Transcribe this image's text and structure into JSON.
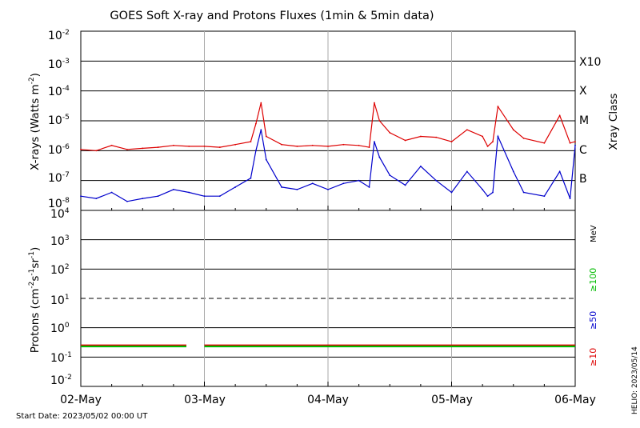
{
  "chart_data": [
    {
      "type": "line",
      "title": "GOES Soft X-ray and Protons Fluxes   (1min & 5min data)",
      "ylabel": "X-rays (Watts m",
      "ylabel_exp": "-2",
      "ylabel_close": ")",
      "yscale": "log",
      "ylim": [
        1e-08,
        0.01
      ],
      "ytick_exponents": [
        "-2",
        "-3",
        "-4",
        "-5",
        "-6",
        "-7",
        "-8"
      ],
      "xlim": [
        "2023-05-02 00:00",
        "2023-05-06 00:00"
      ],
      "xray_class_label": "Xray Class",
      "xray_classes": [
        {
          "label": "X10",
          "flux": 0.001
        },
        {
          "label": "X",
          "flux": 0.0001
        },
        {
          "label": "M",
          "flux": 1e-05
        },
        {
          "label": "C",
          "flux": 1e-06
        },
        {
          "label": "B",
          "flux": 1e-07
        }
      ],
      "colors": {
        "long": "#dd0000",
        "short": "#0000cc",
        "grid": "#000000",
        "day": "#aaaaaa"
      },
      "series": [
        {
          "x": [
            "05/02 00:00",
            "05/02 03:00",
            "05/02 06:00",
            "05/02 09:00",
            "05/02 12:00",
            "05/02 15:00",
            "05/02 18:00",
            "05/02 21:00",
            "05/03 00:00",
            "05/03 03:00",
            "05/03 06:00",
            "05/03 09:00",
            "05/03 10:00",
            "05/03 11:00",
            "05/03 12:00",
            "05/03 15:00",
            "05/03 18:00",
            "05/03 21:00",
            "05/04 00:00",
            "05/04 03:00",
            "05/04 06:00",
            "05/04 08:00",
            "05/04 09:00",
            "05/04 10:00",
            "05/04 12:00",
            "05/04 15:00",
            "05/04 18:00",
            "05/04 21:00",
            "05/05 00:00",
            "05/05 03:00",
            "05/05 06:00",
            "05/05 07:00",
            "05/05 08:00",
            "05/05 09:00",
            "05/05 12:00",
            "05/05 14:00",
            "05/05 18:00",
            "05/05 21:00",
            "05/05 23:00",
            "05/06 00:00"
          ],
          "values": [
            1.1e-06,
            1e-06,
            1.5e-06,
            1.1e-06,
            1.2e-06,
            1.3e-06,
            1.5e-06,
            1.4e-06,
            1.4e-06,
            1.3e-06,
            1.6e-06,
            2e-06,
            8e-06,
            4e-05,
            3e-06,
            1.6e-06,
            1.4e-06,
            1.5e-06,
            1.4e-06,
            1.6e-06,
            1.5e-06,
            1.3e-06,
            4e-05,
            1e-05,
            4e-06,
            2.2e-06,
            3e-06,
            2.8e-06,
            2e-06,
            5e-06,
            3e-06,
            1.4e-06,
            2e-06,
            3e-05,
            5e-06,
            2.6e-06,
            1.8e-06,
            1.5e-05,
            1.8e-06,
            2e-06
          ]
        },
        {
          "x": [
            "05/02 00:00",
            "05/02 03:00",
            "05/02 06:00",
            "05/02 09:00",
            "05/02 12:00",
            "05/02 15:00",
            "05/02 18:00",
            "05/02 21:00",
            "05/03 00:00",
            "05/03 03:00",
            "05/03 06:00",
            "05/03 09:00",
            "05/03 10:00",
            "05/03 11:00",
            "05/03 12:00",
            "05/03 15:00",
            "05/03 18:00",
            "05/03 21:00",
            "05/04 00:00",
            "05/04 03:00",
            "05/04 06:00",
            "05/04 08:00",
            "05/04 09:00",
            "05/04 10:00",
            "05/04 12:00",
            "05/04 15:00",
            "05/04 18:00",
            "05/04 21:00",
            "05/05 00:00",
            "05/05 03:00",
            "05/05 06:00",
            "05/05 07:00",
            "05/05 08:00",
            "05/05 09:00",
            "05/05 12:00",
            "05/05 14:00",
            "05/05 18:00",
            "05/05 21:00",
            "05/05 23:00",
            "05/06 00:00"
          ],
          "values": [
            3e-08,
            2.5e-08,
            4e-08,
            2e-08,
            2.5e-08,
            3e-08,
            5e-08,
            4e-08,
            3e-08,
            3e-08,
            6e-08,
            1.2e-07,
            1e-06,
            5e-06,
            5e-07,
            6e-08,
            5e-08,
            8e-08,
            5e-08,
            8e-08,
            1e-07,
            6e-08,
            2e-06,
            6e-07,
            1.5e-07,
            7e-08,
            3e-07,
            1e-07,
            4e-08,
            2e-07,
            5e-08,
            3e-08,
            4e-08,
            3e-06,
            2e-07,
            4e-08,
            3e-08,
            2e-07,
            2.5e-08,
            1.5e-06
          ]
        }
      ]
    },
    {
      "type": "line",
      "ylabel": "Protons (cm",
      "ylabel_exp1": "-2",
      "ylabel_s": "s",
      "ylabel_exp2": "-1",
      "ylabel_sr": "sr",
      "ylabel_exp3": "-1",
      "ylabel_close": ")",
      "yscale": "log",
      "ylim": [
        0.01,
        10000.0
      ],
      "ytick_exponents": [
        "4",
        "3",
        "2",
        "1",
        "0",
        "-1",
        "-2"
      ],
      "units_label": "MeV",
      "channel_labels": [
        {
          "label": "≥100",
          "color": "#00bb00"
        },
        {
          "label": "≥50",
          "color": "#0000cc"
        },
        {
          "label": "≥10",
          "color": "#dd0000"
        }
      ],
      "threshold": 10,
      "series": [
        {
          "x_range": [
            "05/02 00:00",
            "05/02 20:30"
          ],
          "level": 0.25,
          "color": "#dd0000"
        },
        {
          "x_range": [
            "05/02 00:00",
            "05/02 20:30"
          ],
          "level": 0.23,
          "color": "#00bb00"
        },
        {
          "x_range": [
            "05/03 00:00",
            "05/06 00:00"
          ],
          "level": 0.25,
          "color": "#dd0000"
        },
        {
          "x_range": [
            "05/03 00:00",
            "05/06 00:00"
          ],
          "level": 0.23,
          "color": "#00bb00"
        }
      ]
    }
  ],
  "xaxis": {
    "tick_labels": [
      "02-May",
      "03-May",
      "04-May",
      "05-May",
      "06-May"
    ]
  },
  "footer": {
    "start_date": "Start Date: 2023/05/02 00:00 UT",
    "credit": "HELIO: 2023/05/14"
  }
}
